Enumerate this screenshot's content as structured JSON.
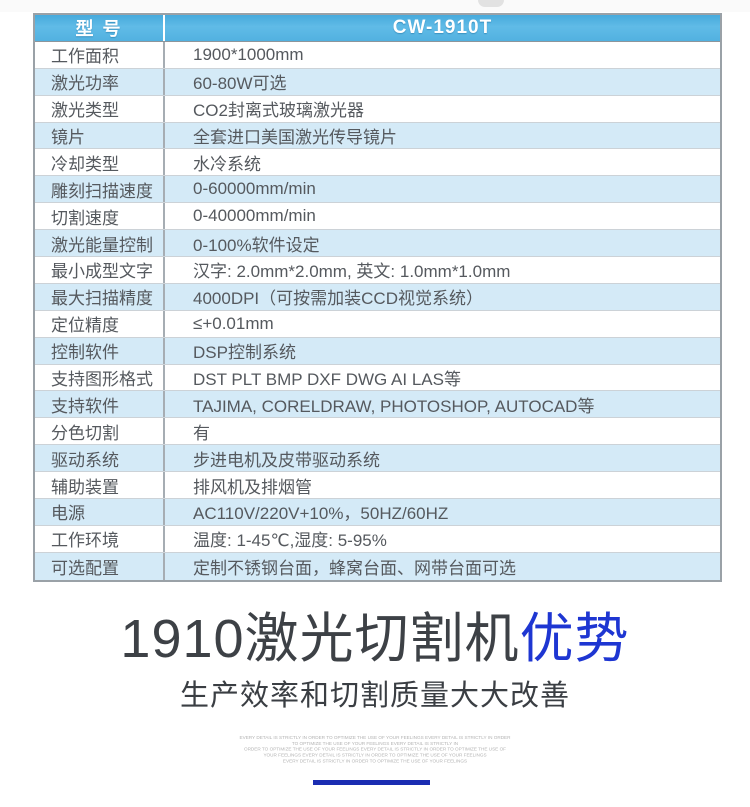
{
  "colors": {
    "accent": "#1e36d2",
    "header_blue": "#55b3e2",
    "row_alt": "#d4eaf7",
    "bar": "#1b2db2"
  },
  "table": {
    "header": {
      "label": "型 号",
      "value": "CW-1910T"
    },
    "rows": [
      {
        "label": "工作面积",
        "value": "1900*1000mm"
      },
      {
        "label": "激光功率",
        "value": "60-80W可选"
      },
      {
        "label": "激光类型",
        "value": "CO2封离式玻璃激光器"
      },
      {
        "label": "镜片",
        "value": "全套进口美国激光传导镜片"
      },
      {
        "label": "冷却类型",
        "value": "水冷系统"
      },
      {
        "label": "雕刻扫描速度",
        "value": "0-60000mm/min"
      },
      {
        "label": "切割速度",
        "value": "0-40000mm/min"
      },
      {
        "label": "激光能量控制",
        "value": "0-100%软件设定"
      },
      {
        "label": "最小成型文字",
        "value": "汉字: 2.0mm*2.0mm, 英文: 1.0mm*1.0mm"
      },
      {
        "label": "最大扫描精度",
        "value": "4000DPI（可按需加装CCD视觉系统）"
      },
      {
        "label": "定位精度",
        "value": "≤+0.01mm"
      },
      {
        "label": "控制软件",
        "value": "DSP控制系统"
      },
      {
        "label": "支持图形格式",
        "value": "DST PLT BMP DXF DWG AI LAS等"
      },
      {
        "label": "支持软件",
        "value": "TAJIMA, CORELDRAW, PHOTOSHOP, AUTOCAD等"
      },
      {
        "label": "分色切割",
        "value": "有"
      },
      {
        "label": "驱动系统",
        "value": "步进电机及皮带驱动系统"
      },
      {
        "label": "辅助装置",
        "value": "排风机及排烟管"
      },
      {
        "label": "电源",
        "value": "AC110V/220V+10%，50HZ/60HZ"
      },
      {
        "label": "工作环境",
        "value": "温度: 1-45℃,湿度: 5-95%"
      },
      {
        "label": "可选配置",
        "value": "定制不锈钢台面，蜂窝台面、网带台面可选"
      }
    ]
  },
  "promo": {
    "title_main": "1910激光切割机",
    "title_accent": "优势",
    "subtitle": "生产效率和切割质量大大改善",
    "watermark_lines": [
      "EVERY DETAIL IS STRICTLY IN ORDER TO OPTIMIZE THE USE OF YOUR FEELINGS EVERY DETAIL IS STRICTLY IN ORDER",
      "TO OPTIMIZE THE USE OF YOUR FEELINGS EVERY DETAIL IS STRICTLY IN",
      "ORDER TO OPTIMIZE THE USE OF YOUR FEELINGS EVERY DETAIL IS STRICTLY IN ORDER TO OPTIMIZE THE USE OF",
      "YOUR FEELINGS EVERY DETAIL IS STRICTLY IN ORDER TO OPTIMIZE THE USE OF YOUR FEELINGS",
      "EVERY DETAIL IS STRICTLY IN ORDER TO OPTIMIZE THE USE OF YOUR FEELINGS"
    ]
  }
}
